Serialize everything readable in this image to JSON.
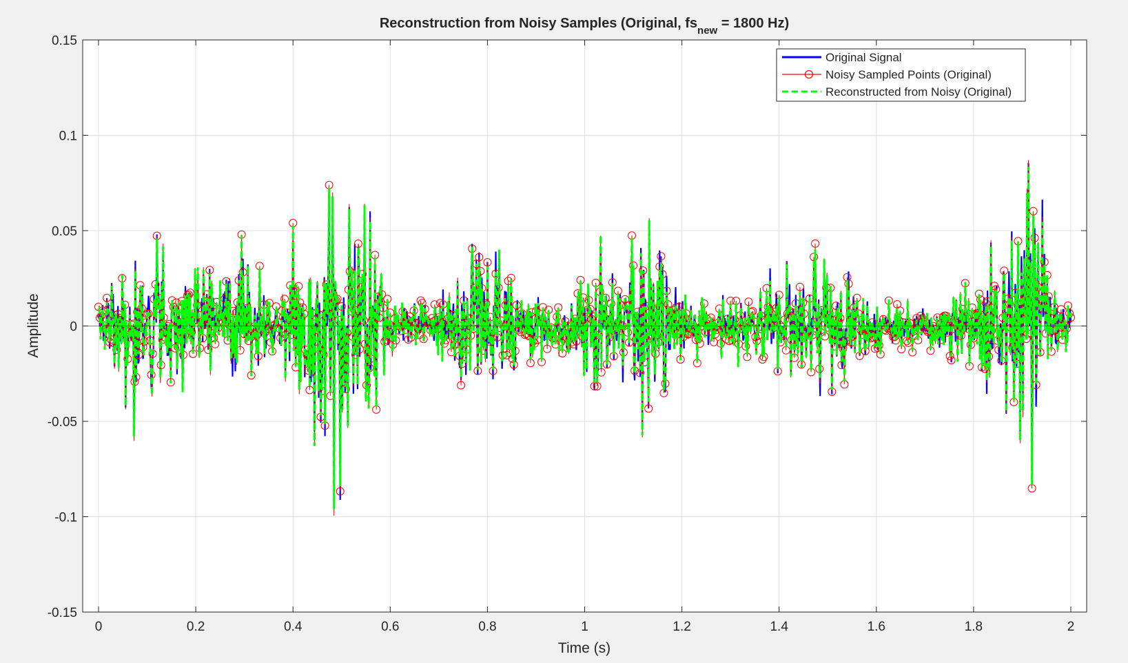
{
  "chart_data": {
    "type": "line",
    "title": {
      "main": "Reconstruction from Noisy Samples (Original, fs",
      "sub": "new",
      "suffix": " = 1800 Hz)"
    },
    "xlabel": "Time (s)",
    "ylabel": "Amplitude",
    "xlim": [
      0,
      2
    ],
    "ylim": [
      -0.15,
      0.15
    ],
    "xticks": [
      0,
      0.2,
      0.4,
      0.6,
      0.8,
      1,
      1.2,
      1.4,
      1.6,
      1.8,
      2
    ],
    "xtick_labels": [
      "0",
      "0.2",
      "0.4",
      "0.6",
      "0.8",
      "1",
      "1.2",
      "1.4",
      "1.6",
      "1.8",
      "2"
    ],
    "yticks": [
      -0.15,
      -0.1,
      -0.05,
      0,
      0.05,
      0.1,
      0.15
    ],
    "ytick_labels": [
      "-0.15",
      "-0.1",
      "-0.05",
      "0",
      "0.05",
      "0.1",
      "0.15"
    ],
    "grid": true,
    "legend_position": "top-right",
    "envelope": {
      "x": [
        0,
        0.03,
        0.06,
        0.08,
        0.12,
        0.18,
        0.22,
        0.26,
        0.28,
        0.3,
        0.32,
        0.36,
        0.4,
        0.44,
        0.47,
        0.49,
        0.52,
        0.55,
        0.58,
        0.6,
        0.65,
        0.7,
        0.74,
        0.77,
        0.8,
        0.83,
        0.86,
        0.9,
        0.95,
        1.0,
        1.02,
        1.05,
        1.08,
        1.1,
        1.12,
        1.14,
        1.18,
        1.22,
        1.26,
        1.3,
        1.35,
        1.4,
        1.45,
        1.48,
        1.52,
        1.56,
        1.6,
        1.65,
        1.7,
        1.75,
        1.8,
        1.84,
        1.87,
        1.9,
        1.92,
        1.94,
        1.96,
        2.0
      ],
      "amplitude": [
        0.015,
        0.03,
        0.05,
        0.055,
        0.045,
        0.04,
        0.035,
        0.03,
        0.06,
        0.075,
        0.03,
        0.02,
        0.04,
        0.07,
        0.09,
        0.1,
        0.09,
        0.07,
        0.04,
        0.015,
        0.012,
        0.02,
        0.045,
        0.05,
        0.085,
        0.05,
        0.02,
        0.015,
        0.012,
        0.04,
        0.05,
        0.04,
        0.03,
        0.07,
        0.085,
        0.065,
        0.03,
        0.015,
        0.012,
        0.015,
        0.02,
        0.03,
        0.035,
        0.04,
        0.035,
        0.025,
        0.015,
        0.012,
        0.012,
        0.015,
        0.025,
        0.05,
        0.045,
        0.08,
        0.1,
        0.07,
        0.03,
        0.015
      ]
    },
    "series": [
      {
        "name": "Original Signal",
        "color": "#0000ff",
        "style": "solid"
      },
      {
        "name": "Noisy Sampled Points (Original)",
        "color": "#ff0000",
        "style": "solid-with-circle-markers"
      },
      {
        "name": "Reconstructed from Noisy (Original)",
        "color": "#00ff00",
        "style": "dashed"
      }
    ]
  }
}
